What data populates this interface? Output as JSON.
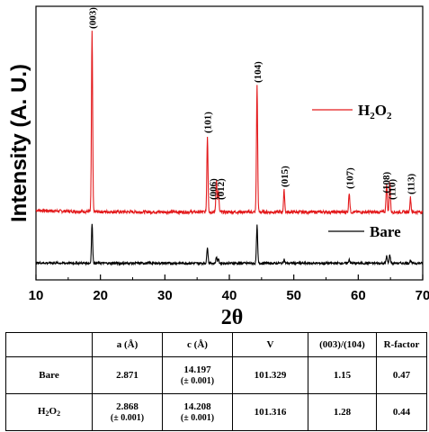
{
  "chart_data": {
    "type": "line",
    "xlabel": "2θ",
    "ylabel": "Intensity (A. U.)",
    "xlim": [
      10,
      70
    ],
    "xticks": [
      10,
      20,
      30,
      40,
      50,
      60,
      70
    ],
    "grid": false,
    "legend_placement": "right",
    "series": [
      {
        "name": "H2O2",
        "color": "#e31a1c",
        "peaks": [
          {
            "x": 18.7,
            "rel": 1.0
          },
          {
            "x": 36.6,
            "rel": 0.42
          },
          {
            "x": 38.0,
            "rel": 0.18
          },
          {
            "x": 38.3,
            "rel": 0.12
          },
          {
            "x": 44.3,
            "rel": 0.7
          },
          {
            "x": 48.5,
            "rel": 0.12
          },
          {
            "x": 58.6,
            "rel": 0.11
          },
          {
            "x": 64.4,
            "rel": 0.16
          },
          {
            "x": 64.9,
            "rel": 0.17
          },
          {
            "x": 68.1,
            "rel": 0.08
          }
        ]
      },
      {
        "name": "Bare",
        "color": "#000000",
        "peaks": [
          {
            "x": 18.7,
            "rel": 1.0
          },
          {
            "x": 36.6,
            "rel": 0.42
          },
          {
            "x": 38.0,
            "rel": 0.15
          },
          {
            "x": 38.3,
            "rel": 0.1
          },
          {
            "x": 44.3,
            "rel": 0.95
          },
          {
            "x": 48.5,
            "rel": 0.1
          },
          {
            "x": 58.6,
            "rel": 0.1
          },
          {
            "x": 64.4,
            "rel": 0.18
          },
          {
            "x": 64.9,
            "rel": 0.22
          },
          {
            "x": 68.1,
            "rel": 0.07
          }
        ]
      }
    ],
    "annotations": [
      {
        "text": "(003)",
        "x": 18.7
      },
      {
        "text": "(101)",
        "x": 36.6
      },
      {
        "text": "(006)",
        "x": 37.4
      },
      {
        "text": "(012)",
        "x": 38.6
      },
      {
        "text": "(104)",
        "x": 44.3
      },
      {
        "text": "(015)",
        "x": 48.5
      },
      {
        "text": "(107)",
        "x": 58.6
      },
      {
        "text": "(108)",
        "x": 64.3
      },
      {
        "text": "(110)",
        "x": 65.2
      },
      {
        "text": "(113)",
        "x": 68.1
      }
    ],
    "legend": [
      {
        "label_main": "H",
        "label_sub1": "2",
        "label_mid": "O",
        "label_sub2": "2",
        "color": "#e31a1c"
      },
      {
        "label_main": "Bare",
        "color": "#000000"
      }
    ]
  },
  "table": {
    "header": [
      "",
      "a (Å)",
      "c (Å)",
      "V",
      "(003)/(104)",
      "R-factor"
    ],
    "rows": [
      {
        "sample": "Bare",
        "a": "2.871",
        "a_err": "",
        "c": "14.197",
        "c_err": "(± 0.001)",
        "V": "101.329",
        "ratio": "1.15",
        "r": "0.47"
      },
      {
        "sample_main": "H",
        "sample_sub1": "2",
        "sample_mid": "O",
        "sample_sub2": "2",
        "a": "2.868",
        "a_err": "(± 0.001)",
        "c": "14.208",
        "c_err": "(± 0.001)",
        "V": "101.316",
        "ratio": "1.28",
        "r": "0.44"
      }
    ]
  }
}
